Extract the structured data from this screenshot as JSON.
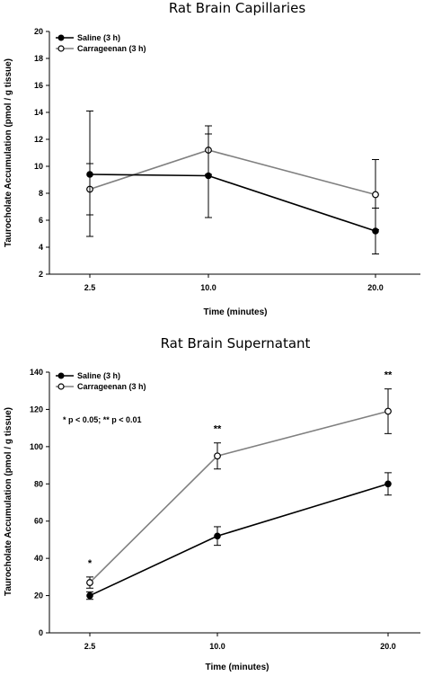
{
  "chart_data": [
    {
      "type": "line",
      "title": "Rat Brain Capillaries",
      "xlabel": "Time (minutes)",
      "ylabel": "Taurocholate Accumulation (pmol / g tissue)",
      "categories": [
        "2.5",
        "10.0",
        "20.0"
      ],
      "ylim": [
        2,
        20
      ],
      "yticks": [
        "2",
        "4",
        "6",
        "8",
        "10",
        "12",
        "14",
        "16",
        "18",
        "20"
      ],
      "grid": false,
      "legend_position": "top-left",
      "series": [
        {
          "name": "Saline (3 h)",
          "marker": "filled",
          "color": "#000000",
          "values": [
            9.4,
            9.3,
            5.2
          ],
          "err_up": [
            0.8,
            3.1,
            1.7
          ],
          "err_down": [
            3.0,
            3.1,
            1.7
          ]
        },
        {
          "name": "Carrageenan (3 h)",
          "marker": "open",
          "color": "#808080",
          "values": [
            8.3,
            11.2,
            7.9
          ],
          "err_up": [
            5.8,
            1.8,
            2.6
          ],
          "err_down": [
            3.5,
            1.8,
            2.6
          ]
        }
      ],
      "annotations": [],
      "significance": []
    },
    {
      "type": "line",
      "title": "Rat Brain Supernatant",
      "xlabel": "Time (minutes)",
      "ylabel": "Taurocholate Accumulation (pmol / g tissue)",
      "categories": [
        "2.5",
        "10.0",
        "20.0"
      ],
      "ylim": [
        0,
        140
      ],
      "yticks": [
        "0",
        "20",
        "40",
        "60",
        "80",
        "100",
        "120",
        "140"
      ],
      "grid": false,
      "legend_position": "top-left",
      "series": [
        {
          "name": "Saline (3 h)",
          "marker": "filled",
          "color": "#000000",
          "values": [
            20,
            52,
            80
          ],
          "err_up": [
            2,
            5,
            6
          ],
          "err_down": [
            2,
            5,
            6
          ]
        },
        {
          "name": "Carrageenan (3 h)",
          "marker": "open",
          "color": "#808080",
          "values": [
            27,
            95,
            119
          ],
          "err_up": [
            3,
            7,
            12
          ],
          "err_down": [
            3,
            7,
            12
          ]
        }
      ],
      "annotations": [
        "* p < 0.05; ** p < 0.01"
      ],
      "significance": [
        "*",
        "**",
        "**"
      ]
    }
  ]
}
